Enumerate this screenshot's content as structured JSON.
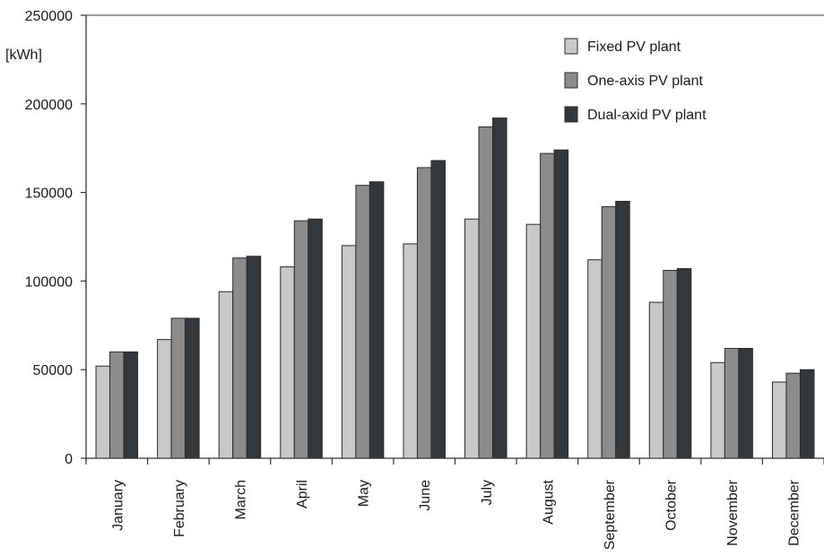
{
  "chart_data": {
    "type": "bar",
    "ylabel": "[kWh]",
    "ylim": [
      0,
      250000
    ],
    "yticks": [
      "0",
      "50000",
      "100000",
      "150000",
      "200000",
      "250000"
    ],
    "categories": [
      "January",
      "February",
      "March",
      "April",
      "May",
      "June",
      "July",
      "August",
      "September",
      "October",
      "November",
      "December"
    ],
    "series": [
      {
        "name": "Fixed PV plant",
        "color": "#c8c8c8",
        "values": [
          52000,
          67000,
          94000,
          108000,
          120000,
          121000,
          135000,
          132000,
          112000,
          88000,
          54000,
          43000
        ]
      },
      {
        "name": "One-axis PV plant",
        "color": "#8c8c8c",
        "values": [
          60000,
          79000,
          113000,
          134000,
          154000,
          164000,
          187000,
          172000,
          142000,
          106000,
          62000,
          48000
        ]
      },
      {
        "name": "Dual-axid PV plant",
        "color": "#33383c",
        "values": [
          60000,
          79000,
          114000,
          135000,
          156000,
          168000,
          192000,
          174000,
          145000,
          107000,
          62000,
          50000
        ]
      }
    ],
    "legend": "top-right",
    "grid": false
  }
}
